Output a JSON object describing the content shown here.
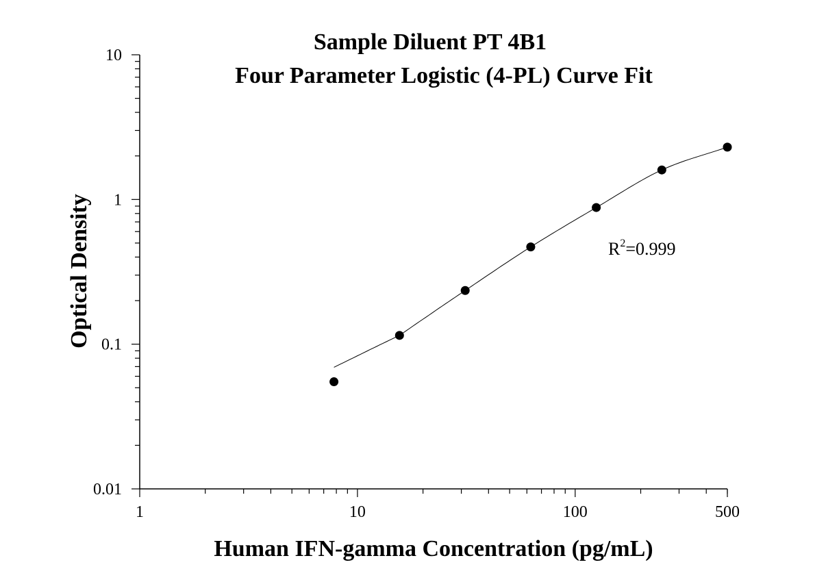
{
  "chart_data": {
    "type": "scatter",
    "title": [
      "Sample Diluent PT 4B1",
      "Four Parameter Logistic (4-PL) Curve Fit"
    ],
    "xlabel": "Human IFN-gamma Concentration (pg/mL)",
    "ylabel": "Optical Density",
    "xscale": "log",
    "yscale": "log",
    "xlim": [
      1,
      500
    ],
    "ylim": [
      0.01,
      10
    ],
    "x_ticks": [
      {
        "value": 1,
        "label": "1"
      },
      {
        "value": 10,
        "label": "10"
      },
      {
        "value": 100,
        "label": "100"
      },
      {
        "value": 500,
        "label": "500"
      }
    ],
    "y_ticks": [
      {
        "value": 0.01,
        "label": "0.01"
      },
      {
        "value": 0.1,
        "label": "0.1"
      },
      {
        "value": 1,
        "label": "1"
      },
      {
        "value": 10,
        "label": "10"
      }
    ],
    "grid": false,
    "series": [
      {
        "x": [
          7.8,
          15.6,
          31.25,
          62.5,
          125,
          250,
          500
        ],
        "y": [
          0.055,
          0.115,
          0.235,
          0.47,
          0.88,
          1.6,
          2.3
        ],
        "marker": "circle",
        "color": "#000000"
      }
    ],
    "fit_curve": {
      "model": "4PL",
      "x_range": [
        7.8,
        500
      ],
      "color": "#000000"
    },
    "annotation": {
      "base": "R",
      "superscript": "2",
      "text": "=0.999"
    }
  }
}
